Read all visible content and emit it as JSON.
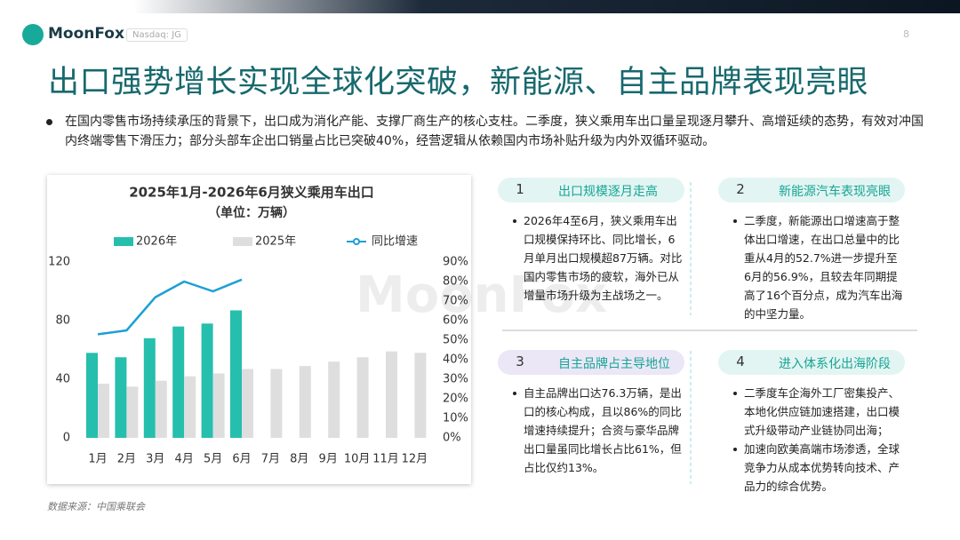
{
  "header": {
    "logo": "MoonFox",
    "ticker": "Nasdaq: JG",
    "page": "8"
  },
  "title": "出口强势增长实现全球化突破，新能源、自主品牌表现亮眼",
  "summary": "在国内零售市场持续承压的背景下，出口成为消化产能、支撑厂商生产的核心支柱。二季度，狭义乘用车出口量呈现逐月攀升、高增延续的态势，有效对冲国内终端零售下滑压力；部分头部车企出口销量占比已突破40%，经营逻辑从依赖国内市场补贴升级为内外双循环驱动。",
  "chart_data": {
    "type": "bar",
    "title": "2025年1月-2026年6月狭义乘用车出口",
    "subtitle": "（单位：万辆）",
    "categories": [
      "1月",
      "2月",
      "3月",
      "4月",
      "5月",
      "6月",
      "7月",
      "8月",
      "9月",
      "10月",
      "11月",
      "12月"
    ],
    "series": [
      {
        "name": "2026年",
        "color": "#26bfae",
        "values": [
          58,
          55,
          68,
          76,
          78,
          87,
          null,
          null,
          null,
          null,
          null,
          null
        ]
      },
      {
        "name": "2025年",
        "color": "#dedede",
        "values": [
          37,
          35,
          39,
          42,
          44,
          47,
          47,
          49,
          52,
          55,
          59,
          58
        ]
      },
      {
        "name": "同比增速",
        "color": "#1d9fd6",
        "type": "line",
        "axis": "y2",
        "values": [
          53,
          55,
          72,
          80,
          75,
          81,
          null,
          null,
          null,
          null,
          null,
          null
        ]
      }
    ],
    "ylim": [
      0,
      120
    ],
    "yticks": [
      0,
      40,
      80,
      120
    ],
    "y2lim": [
      0,
      90
    ],
    "y2ticks": [
      {
        "value": 0,
        "label": "0%"
      },
      {
        "value": 10,
        "label": "10%"
      },
      {
        "value": 20,
        "label": "20%"
      },
      {
        "value": 30,
        "label": "30%"
      },
      {
        "value": 40,
        "label": "40%"
      },
      {
        "value": 50,
        "label": "50%"
      },
      {
        "value": 60,
        "label": "60%"
      },
      {
        "value": 70,
        "label": "70%"
      },
      {
        "value": 80,
        "label": "80%"
      },
      {
        "value": 90,
        "label": "90%"
      }
    ],
    "legend": "top",
    "grid": false
  },
  "cards": [
    {
      "number": "1",
      "title": "出口规模逐月走高",
      "bullets": [
        "2026年4至6月，狭义乘用车出口规模保持环比、同比增长，6月单月出口规模超87万辆。对比国内零售市场的疲软，海外已从增量市场升级为主战场之一。"
      ]
    },
    {
      "number": "2",
      "title": "新能源汽车表现亮眼",
      "bullets": [
        "二季度，新能源出口增速高于整体出口增速，在出口总量中的比重从4月的52.7%进一步提升至6月的56.9%，且较去年同期提高了16个百分点，成为汽车出海的中坚力量。"
      ]
    },
    {
      "number": "3",
      "title": "自主品牌占主导地位",
      "bullets": [
        "自主品牌出口达76.3万辆，是出口的核心构成，且以86%的同比增速持续提升；合资与豪华品牌出口量虽同比增长占比61%，但占比仅约13%。"
      ]
    },
    {
      "number": "4",
      "title": "进入体系化出海阶段",
      "bullets": [
        "二季度车企海外工厂密集投产、本地化供应链加速搭建，出口模式升级带动产业链协同出海；",
        "加速向欧美高端市场渗透，全球竞争力从成本优势转向技术、产品力的综合优势。"
      ]
    }
  ],
  "source": "数据来源：中国乘联会"
}
